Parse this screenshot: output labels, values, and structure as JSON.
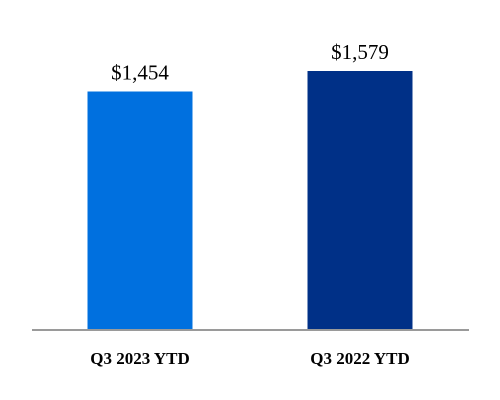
{
  "chart_data": {
    "type": "bar",
    "categories": [
      "Q3 2023 YTD",
      "Q3 2022 YTD"
    ],
    "values": [
      1454,
      1579
    ],
    "value_labels": [
      "$1,454",
      "$1,579"
    ],
    "colors": [
      "#0070df",
      "#003087"
    ],
    "axis_color": "#9a9a9a",
    "title": "",
    "xlabel": "",
    "ylabel": "",
    "grid": false,
    "legend": "none"
  }
}
